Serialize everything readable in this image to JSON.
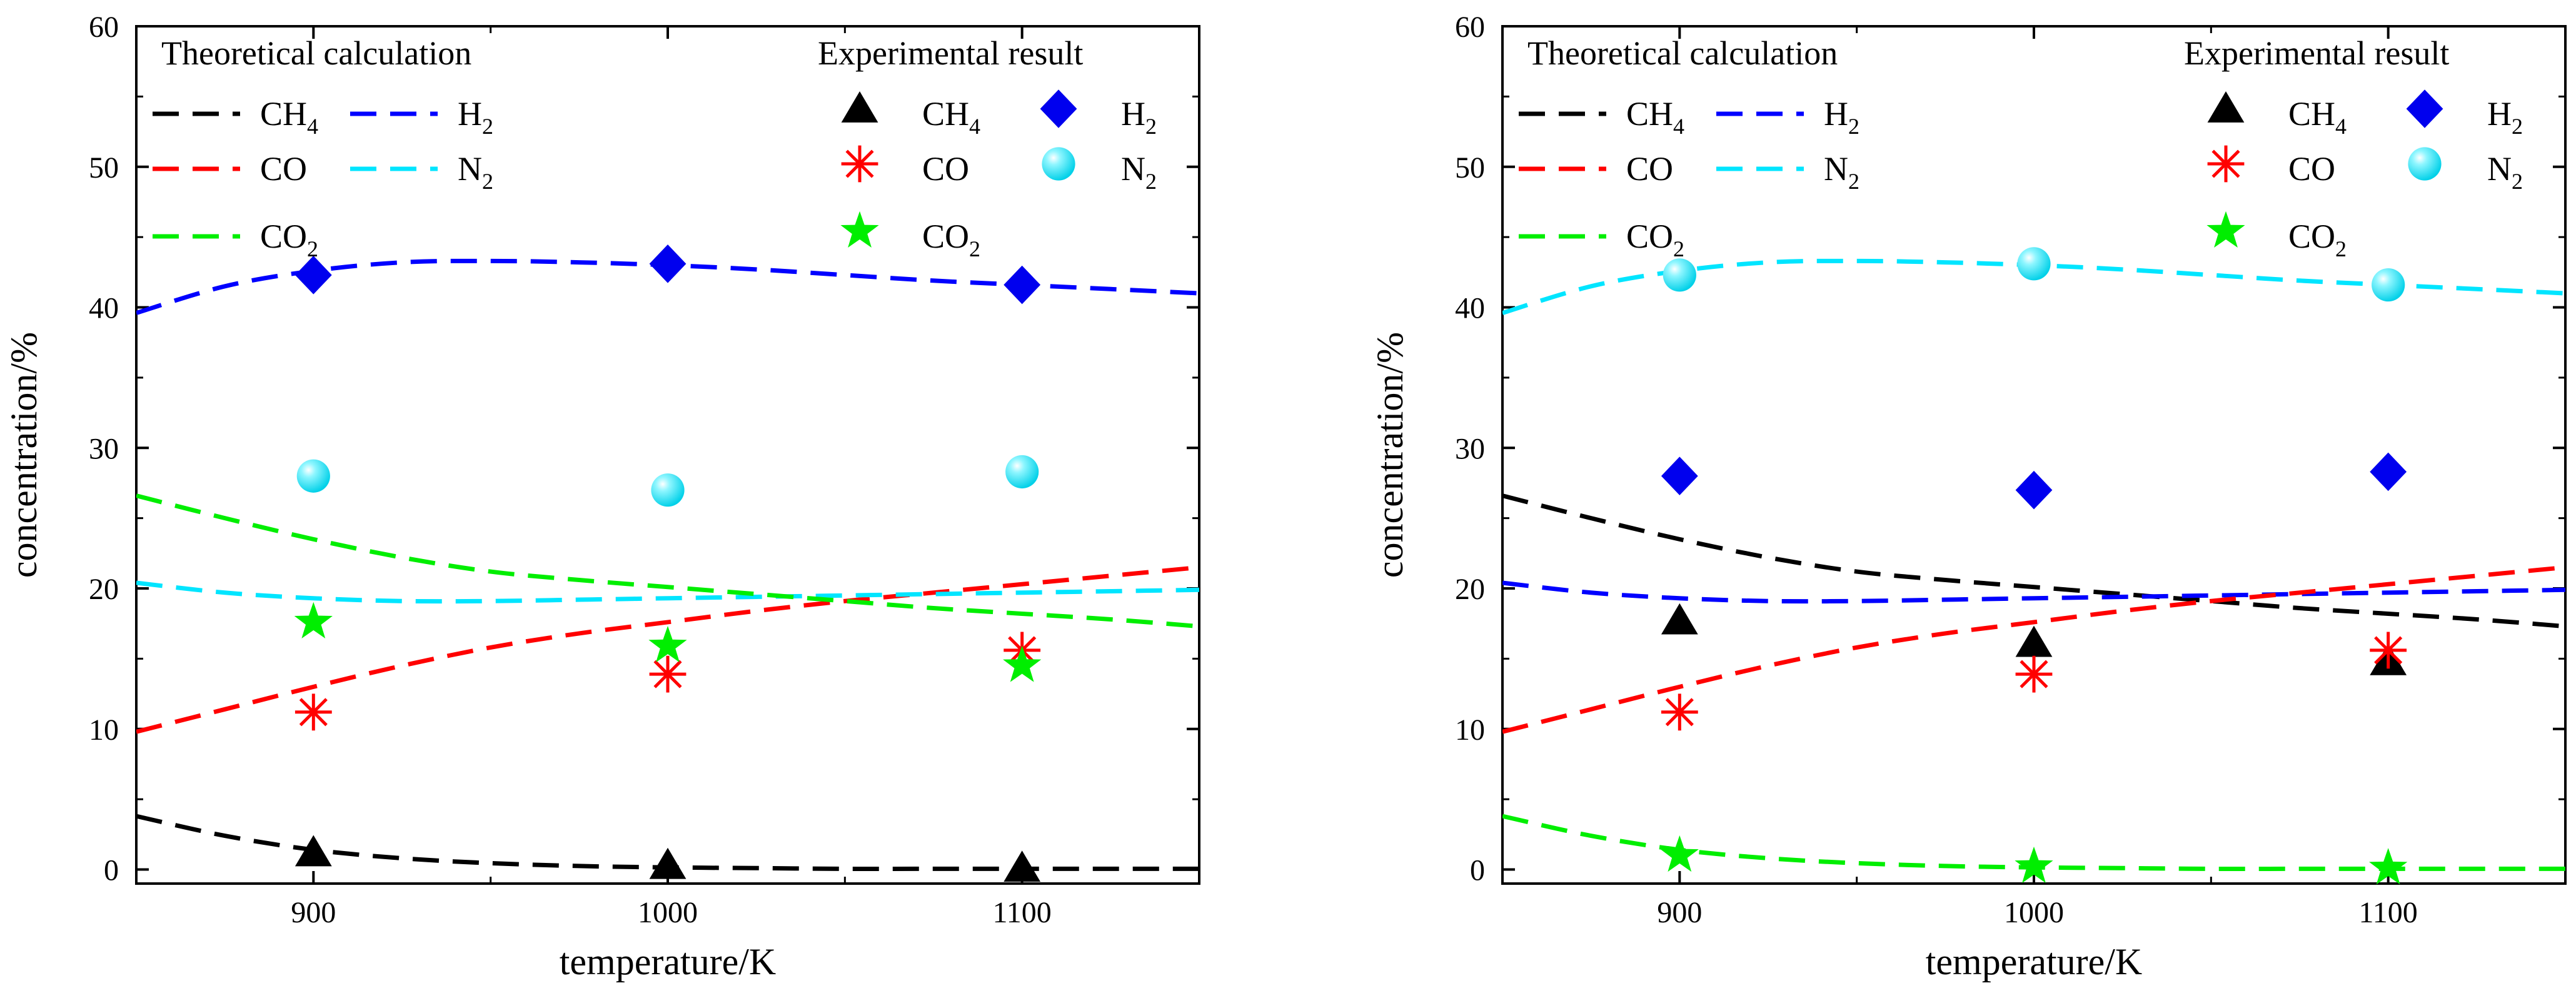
{
  "chart_data": [
    {
      "type": "scatter",
      "xlabel": "temperature/K",
      "ylabel": "concentration/%",
      "xlim": [
        850,
        1150
      ],
      "ylim": [
        -1,
        60
      ],
      "xticks": [
        900,
        1000,
        1100
      ],
      "yticks": [
        0,
        10,
        20,
        30,
        40,
        50,
        60
      ],
      "legend": {
        "theoretical_title": "Theoretical calculation",
        "experimental_title": "Experimental result",
        "placement": "top"
      },
      "theoretical": [
        {
          "name": "CH4",
          "label": "CH",
          "sub": "4",
          "color": "#000000",
          "x": [
            850,
            875,
            900,
            925,
            950,
            975,
            1000,
            1025,
            1050,
            1075,
            1100,
            1125,
            1150
          ],
          "y": [
            3.8,
            2.4,
            1.4,
            0.8,
            0.45,
            0.25,
            0.15,
            0.1,
            0.05,
            0.05,
            0.05,
            0.05,
            0.05
          ]
        },
        {
          "name": "H2",
          "label": "H",
          "sub": "2",
          "color": "#0000ff",
          "x": [
            850,
            875,
            900,
            925,
            950,
            975,
            1000,
            1025,
            1050,
            1075,
            1100,
            1125,
            1150
          ],
          "y": [
            39.6,
            41.5,
            42.6,
            43.2,
            43.3,
            43.2,
            43.0,
            42.7,
            42.3,
            41.9,
            41.6,
            41.3,
            41.0
          ]
        },
        {
          "name": "CO",
          "label": "CO",
          "sub": "",
          "color": "#ff0000",
          "x": [
            850,
            875,
            900,
            925,
            950,
            975,
            1000,
            1025,
            1050,
            1075,
            1100,
            1125,
            1150
          ],
          "y": [
            9.8,
            11.4,
            13.0,
            14.5,
            15.8,
            16.8,
            17.6,
            18.4,
            19.1,
            19.7,
            20.3,
            20.9,
            21.5
          ]
        },
        {
          "name": "N2",
          "label": "N",
          "sub": "2",
          "color": "#00e5ff",
          "x": [
            850,
            875,
            900,
            925,
            950,
            975,
            1000,
            1025,
            1050,
            1075,
            1100,
            1125,
            1150
          ],
          "y": [
            20.4,
            19.7,
            19.3,
            19.1,
            19.1,
            19.2,
            19.3,
            19.4,
            19.5,
            19.6,
            19.7,
            19.8,
            19.9
          ]
        },
        {
          "name": "CO2",
          "label": "CO",
          "sub": "2",
          "color": "#00ee00",
          "x": [
            850,
            875,
            900,
            925,
            950,
            975,
            1000,
            1025,
            1050,
            1075,
            1100,
            1125,
            1150
          ],
          "y": [
            26.6,
            25.0,
            23.5,
            22.2,
            21.2,
            20.6,
            20.1,
            19.6,
            19.1,
            18.6,
            18.2,
            17.8,
            17.3
          ]
        }
      ],
      "experimental": [
        {
          "name": "CH4",
          "label": "CH",
          "sub": "4",
          "color": "#000000",
          "marker": "triangle",
          "x": [
            900,
            1000,
            1100
          ],
          "y": [
            1.2,
            0.3,
            0.1
          ]
        },
        {
          "name": "H2",
          "label": "H",
          "sub": "2",
          "color": "#0000ee",
          "marker": "diamond",
          "x": [
            900,
            1000,
            1100
          ],
          "y": [
            42.3,
            43.1,
            41.6
          ]
        },
        {
          "name": "CO",
          "label": "CO",
          "sub": "",
          "color": "#ff0000",
          "marker": "asterisk",
          "x": [
            900,
            1000,
            1100
          ],
          "y": [
            11.2,
            13.9,
            15.6
          ]
        },
        {
          "name": "N2",
          "label": "N",
          "sub": "2",
          "color": "#00e5ff",
          "marker": "sphere",
          "x": [
            900,
            1000,
            1100
          ],
          "y": [
            28.0,
            27.0,
            28.3
          ]
        },
        {
          "name": "CO2",
          "label": "CO",
          "sub": "2",
          "color": "#00ee00",
          "marker": "star",
          "x": [
            900,
            1000,
            1100
          ],
          "y": [
            17.6,
            15.9,
            14.5
          ]
        }
      ]
    },
    {
      "type": "scatter",
      "xlabel": "temperature/K",
      "ylabel": "concentration/%",
      "xlim": [
        850,
        1150
      ],
      "ylim": [
        -1,
        60
      ],
      "xticks": [
        900,
        1000,
        1100
      ],
      "yticks": [
        0,
        10,
        20,
        30,
        40,
        50,
        60
      ],
      "legend": {
        "theoretical_title": "Theoretical calculation",
        "experimental_title": "Experimental result",
        "placement": "top"
      },
      "theoretical": [
        {
          "name": "CH4",
          "label": "CH",
          "sub": "4",
          "color": "#000000",
          "x": [
            850,
            875,
            900,
            925,
            950,
            975,
            1000,
            1025,
            1050,
            1075,
            1100,
            1125,
            1150
          ],
          "y": [
            26.6,
            25.0,
            23.5,
            22.2,
            21.2,
            20.6,
            20.1,
            19.6,
            19.1,
            18.6,
            18.2,
            17.8,
            17.3
          ]
        },
        {
          "name": "H2",
          "label": "H",
          "sub": "2",
          "color": "#0000ff",
          "x": [
            850,
            875,
            900,
            925,
            950,
            975,
            1000,
            1025,
            1050,
            1075,
            1100,
            1125,
            1150
          ],
          "y": [
            20.4,
            19.7,
            19.3,
            19.1,
            19.1,
            19.2,
            19.3,
            19.4,
            19.5,
            19.6,
            19.7,
            19.8,
            19.9
          ]
        },
        {
          "name": "CO",
          "label": "CO",
          "sub": "",
          "color": "#ff0000",
          "x": [
            850,
            875,
            900,
            925,
            950,
            975,
            1000,
            1025,
            1050,
            1075,
            1100,
            1125,
            1150
          ],
          "y": [
            9.8,
            11.4,
            13.0,
            14.5,
            15.8,
            16.8,
            17.6,
            18.4,
            19.1,
            19.7,
            20.3,
            20.9,
            21.5
          ]
        },
        {
          "name": "N2",
          "label": "N",
          "sub": "2",
          "color": "#00e5ff",
          "x": [
            850,
            875,
            900,
            925,
            950,
            975,
            1000,
            1025,
            1050,
            1075,
            1100,
            1125,
            1150
          ],
          "y": [
            39.6,
            41.5,
            42.6,
            43.2,
            43.3,
            43.2,
            43.0,
            42.7,
            42.3,
            41.9,
            41.6,
            41.3,
            41.0
          ]
        },
        {
          "name": "CO2",
          "label": "CO",
          "sub": "2",
          "color": "#00ee00",
          "x": [
            850,
            875,
            900,
            925,
            950,
            975,
            1000,
            1025,
            1050,
            1075,
            1100,
            1125,
            1150
          ],
          "y": [
            3.8,
            2.4,
            1.4,
            0.8,
            0.45,
            0.25,
            0.15,
            0.1,
            0.05,
            0.05,
            0.05,
            0.05,
            0.05
          ]
        }
      ],
      "experimental": [
        {
          "name": "CH4",
          "label": "CH",
          "sub": "4",
          "color": "#000000",
          "marker": "triangle",
          "x": [
            900,
            1000,
            1100
          ],
          "y": [
            17.7,
            16.1,
            14.8
          ]
        },
        {
          "name": "H2",
          "label": "H",
          "sub": "2",
          "color": "#0000ee",
          "marker": "diamond",
          "x": [
            900,
            1000,
            1100
          ],
          "y": [
            28.0,
            27.0,
            28.3
          ]
        },
        {
          "name": "CO",
          "label": "CO",
          "sub": "",
          "color": "#ff0000",
          "marker": "asterisk",
          "x": [
            900,
            1000,
            1100
          ],
          "y": [
            11.2,
            13.9,
            15.6
          ]
        },
        {
          "name": "N2",
          "label": "N",
          "sub": "2",
          "color": "#00e5ff",
          "marker": "sphere",
          "x": [
            900,
            1000,
            1100
          ],
          "y": [
            42.3,
            43.1,
            41.6
          ]
        },
        {
          "name": "CO2",
          "label": "CO",
          "sub": "2",
          "color": "#00ee00",
          "marker": "star",
          "x": [
            900,
            1000,
            1100
          ],
          "y": [
            1.0,
            0.2,
            0.1
          ]
        }
      ]
    }
  ]
}
